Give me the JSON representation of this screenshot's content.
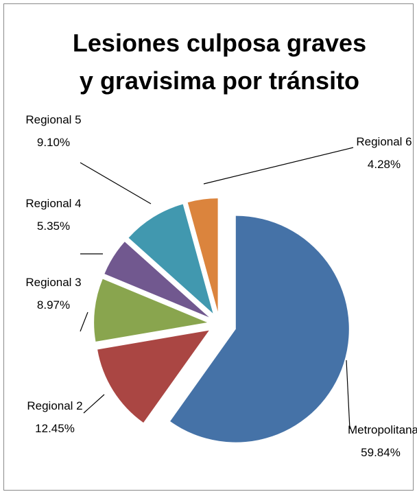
{
  "chart_data": {
    "type": "pie",
    "title": "Lesiones culposa graves y gravisima por tránsito",
    "categories": [
      "Metropolitana",
      "Regional 2",
      "Regional 3",
      "Regional 4",
      "Regional 5",
      "Regional 6"
    ],
    "values": [
      59.84,
      12.45,
      8.97,
      5.35,
      9.1,
      4.28
    ],
    "value_labels": [
      "59.84%",
      "12.45%",
      "8.97%",
      "5.35%",
      "9.10%",
      "4.28%"
    ],
    "colors": [
      "#4572A7",
      "#AA4643",
      "#89A54E",
      "#71588F",
      "#4198AF",
      "#DB843D"
    ]
  }
}
